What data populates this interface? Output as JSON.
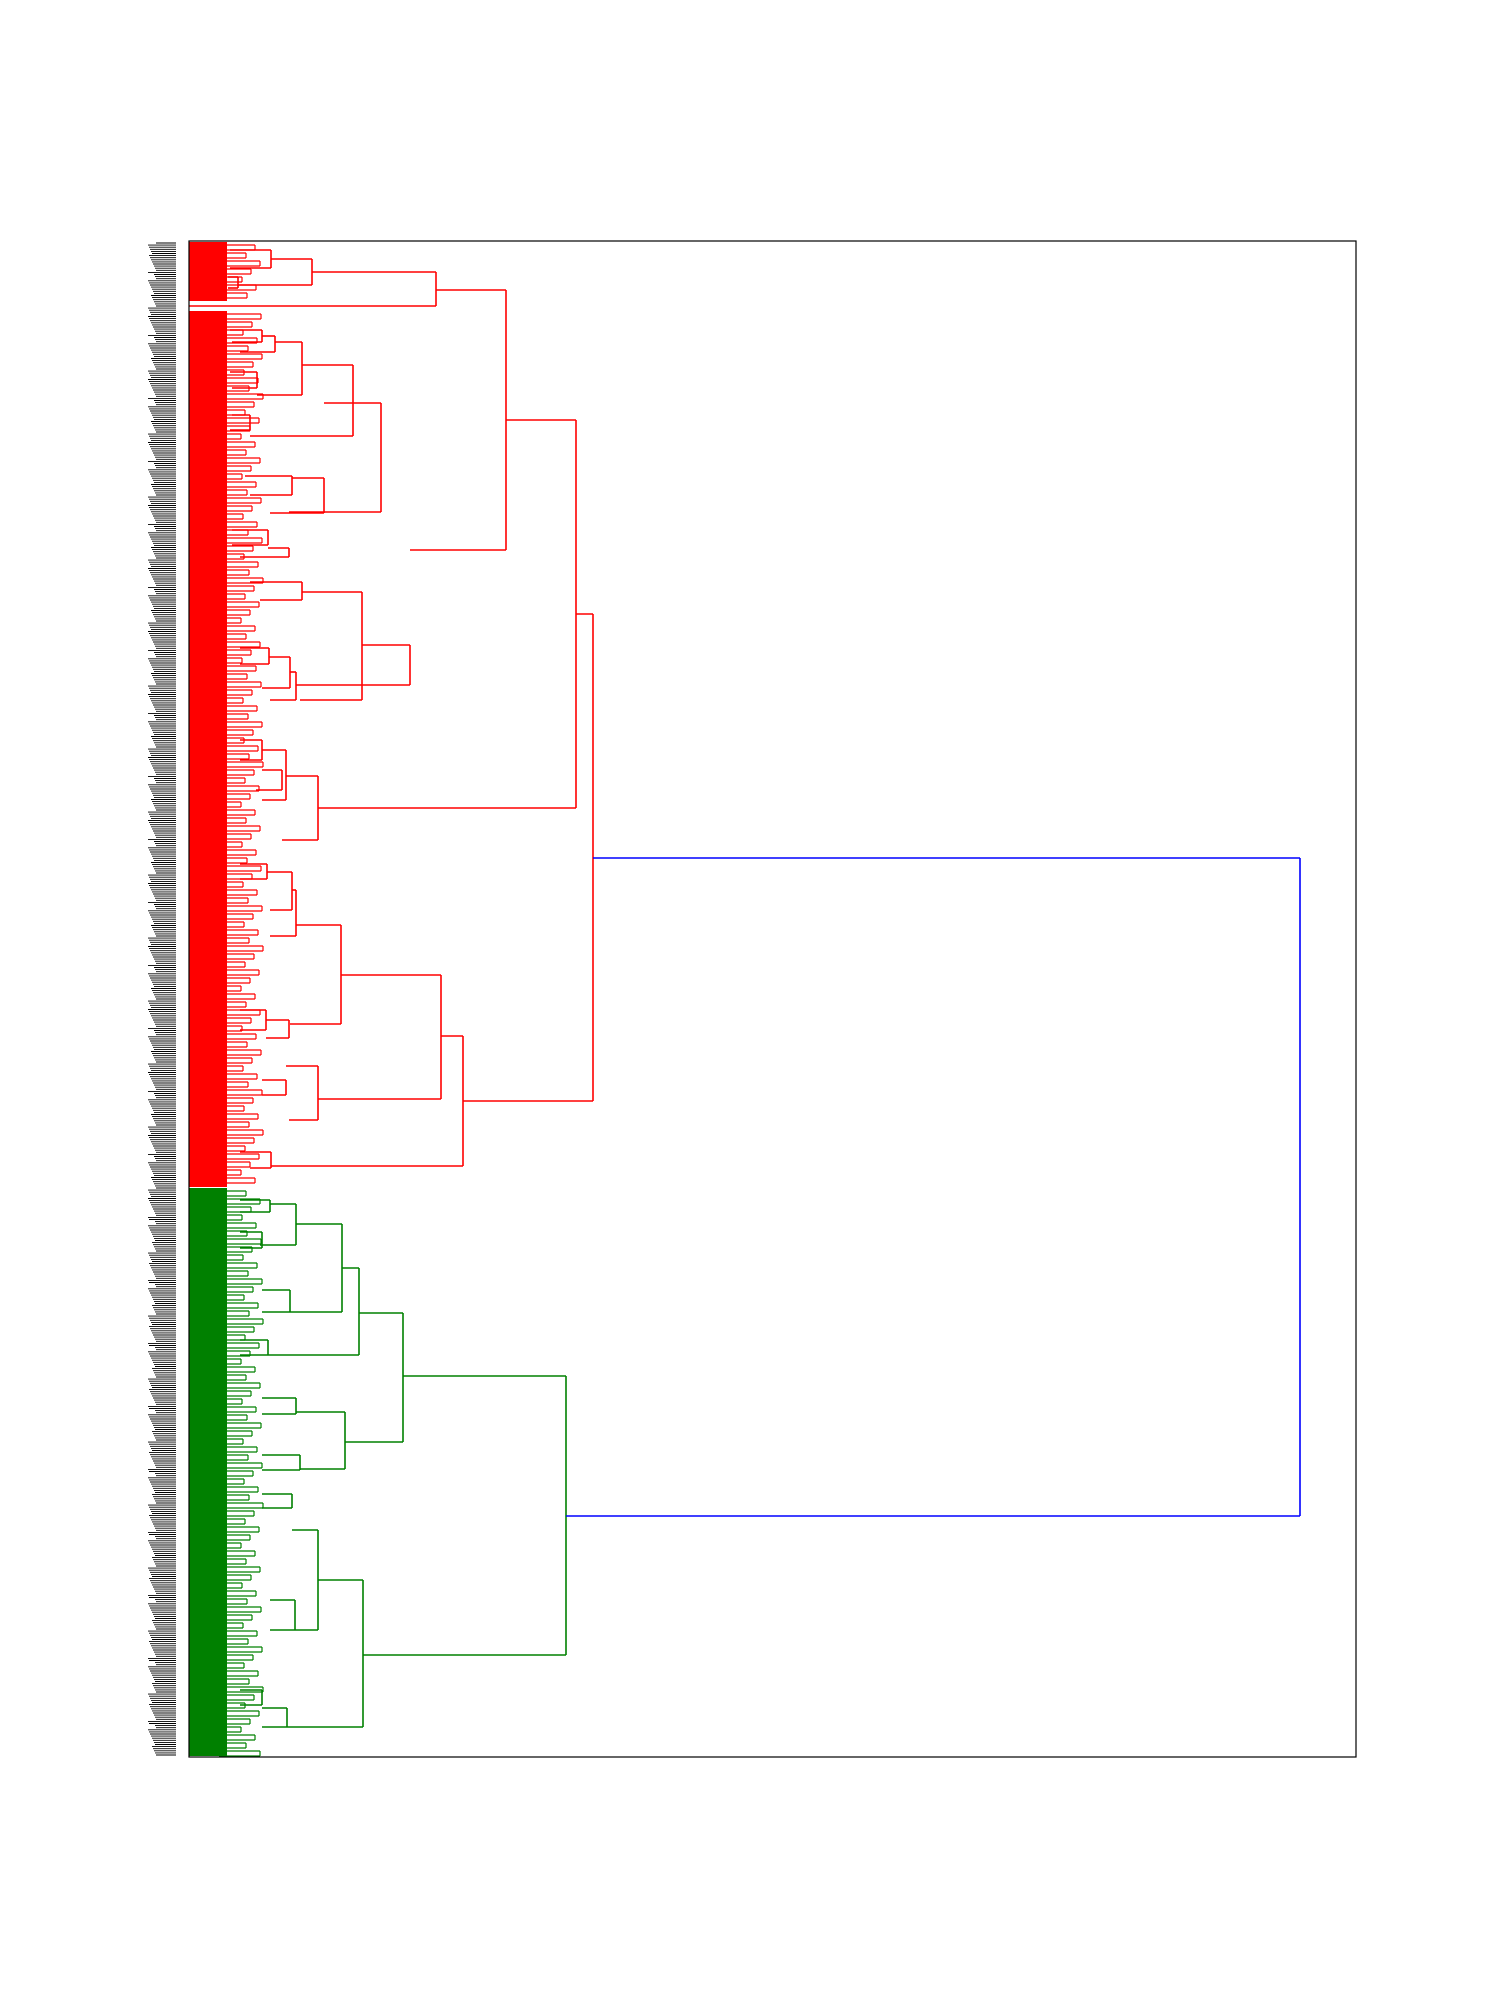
{
  "chart_data": {
    "type": "dendrogram",
    "orientation": "left-to-right",
    "title": "",
    "xlabel": "",
    "ylabel": "",
    "leaf_count": 720,
    "leaf_labels_legible": false,
    "axes_visible": false,
    "frame": true,
    "colors": {
      "cluster_1": "#ff0000",
      "cluster_2": "#008000",
      "root_link": "#0000ff",
      "leaf_labels": "#000000",
      "frame": "#000000"
    },
    "clusters": [
      {
        "name": "cluster_1",
        "color": "#ff0000",
        "leaf_fraction": 0.627
      },
      {
        "name": "cluster_2",
        "color": "#008000",
        "leaf_fraction": 0.373
      }
    ],
    "merge_heights": {
      "root": 1.0,
      "cluster_1_top": 0.348,
      "cluster_2_top": 0.325,
      "cluster_1_sub_a": 0.333,
      "cluster_1_sub_b": 0.237,
      "cluster_1_sub_c": 0.272
    }
  }
}
